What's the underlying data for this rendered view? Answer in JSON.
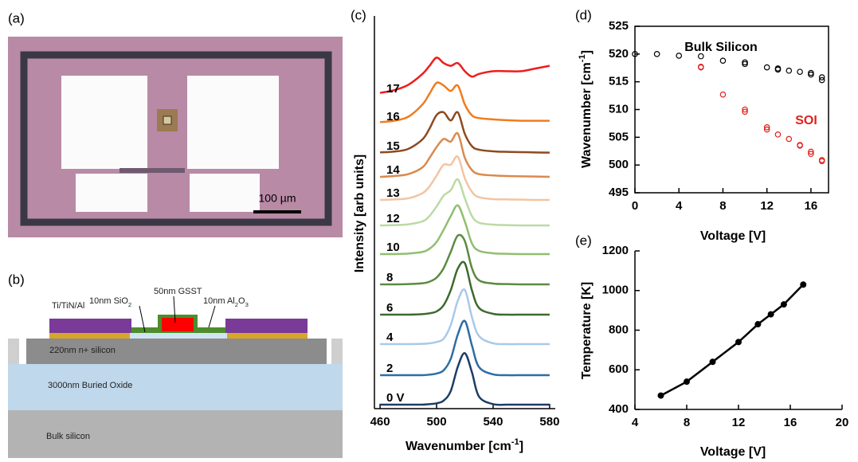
{
  "micrograph": {
    "panel": "(a)",
    "scale_bar": "100 µm"
  },
  "cross_section": {
    "panel": "(b)",
    "labels": {
      "metal": [
        "Ti/TiN/Al"
      ],
      "sio2": [
        "10nm SiO",
        "2"
      ],
      "gsst": [
        "50nm GSST"
      ],
      "al2o3": [
        "10nm Al",
        "2",
        "O",
        "3"
      ],
      "nsilicon": [
        "220nm n+ silicon"
      ],
      "oxide": [
        "3000nm Buried Oxide"
      ],
      "bulk": [
        "Bulk silicon"
      ]
    }
  },
  "chart_data": [
    {
      "type": "line",
      "panel": "(c)",
      "xlabel": [
        "Wavenumber [cm",
        "-1",
        "]"
      ],
      "ylabel": "Intensity [arb units]",
      "xlim": [
        456,
        584
      ],
      "xticks": [
        460,
        500,
        540,
        580
      ],
      "x": [
        460,
        470,
        480,
        490,
        495,
        500,
        505,
        510,
        515,
        520,
        525,
        530,
        540,
        550,
        560,
        570,
        580
      ],
      "series": [
        {
          "name": "0 V",
          "color": "#1f3d66",
          "values": [
            0,
            0,
            0,
            0,
            0.02,
            0.05,
            0.15,
            0.5,
            1.4,
            1.9,
            1.2,
            0.3,
            0.02,
            0,
            0,
            0,
            0
          ]
        },
        {
          "name": "2",
          "color": "#2e6da4",
          "values": [
            0,
            0,
            0,
            0,
            0.02,
            0.06,
            0.18,
            0.6,
            1.5,
            2.0,
            1.1,
            0.3,
            0.03,
            0,
            0,
            0,
            0
          ]
        },
        {
          "name": "4",
          "color": "#a9c9e8",
          "values": [
            0,
            0,
            0,
            0.01,
            0.03,
            0.08,
            0.2,
            0.7,
            1.6,
            2.0,
            1.0,
            0.3,
            0.03,
            0,
            0,
            0,
            0
          ]
        },
        {
          "name": "6",
          "color": "#3c6a2e",
          "values": [
            0,
            0,
            0,
            0.02,
            0.05,
            0.12,
            0.35,
            0.9,
            1.7,
            1.9,
            0.9,
            0.25,
            0.03,
            0,
            0,
            0,
            0
          ]
        },
        {
          "name": "8",
          "color": "#5b8b40",
          "values": [
            0,
            0,
            0.01,
            0.04,
            0.1,
            0.25,
            0.6,
            1.2,
            1.8,
            1.6,
            0.6,
            0.15,
            0.03,
            0.01,
            0,
            0,
            0
          ]
        },
        {
          "name": "10",
          "color": "#8fbf70",
          "values": [
            0,
            0,
            0.02,
            0.08,
            0.2,
            0.45,
            0.9,
            1.4,
            1.8,
            1.2,
            0.4,
            0.12,
            0.03,
            0.01,
            0,
            0,
            0
          ]
        },
        {
          "name": "12",
          "color": "#bcdaa4",
          "values": [
            0,
            0.01,
            0.04,
            0.15,
            0.35,
            0.7,
            1.1,
            1.3,
            1.7,
            1.0,
            0.35,
            0.1,
            0.03,
            0.01,
            0,
            0,
            0
          ]
        },
        {
          "name": "13",
          "color": "#f3c4a2",
          "values": [
            0,
            0.02,
            0.06,
            0.25,
            0.5,
            0.9,
            1.3,
            1.3,
            1.6,
            0.8,
            0.3,
            0.1,
            0.03,
            0.02,
            0.01,
            0,
            0
          ]
        },
        {
          "name": "14",
          "color": "#d98a4e",
          "values": [
            0,
            0.03,
            0.1,
            0.35,
            0.7,
            1.1,
            1.4,
            1.3,
            1.6,
            0.7,
            0.25,
            0.1,
            0.05,
            0.03,
            0.02,
            0.01,
            0
          ]
        },
        {
          "name": "15",
          "color": "#8e4a1e",
          "values": [
            0.02,
            0.05,
            0.15,
            0.5,
            0.9,
            1.4,
            1.5,
            1.2,
            1.5,
            0.7,
            0.25,
            0.12,
            0.06,
            0.04,
            0.03,
            0.02,
            0.01
          ]
        },
        {
          "name": "16",
          "color": "#f07c1e",
          "values": [
            0.05,
            0.1,
            0.25,
            0.7,
            1.1,
            1.5,
            1.4,
            1.2,
            1.4,
            0.7,
            0.3,
            0.2,
            0.15,
            0.12,
            0.1,
            0.1,
            0.1
          ]
        },
        {
          "name": "17",
          "color": "#ee1c1c",
          "values": [
            0.1,
            0.2,
            0.4,
            0.8,
            1.1,
            1.4,
            1.2,
            1.1,
            1.2,
            0.9,
            0.7,
            0.8,
            0.9,
            0.9,
            0.9,
            1.0,
            1.1
          ]
        }
      ]
    },
    {
      "type": "scatter",
      "panel": "(d)",
      "xlabel": "Voltage [V]",
      "ylabel": [
        "Wavenumber [cm",
        "-1",
        "]"
      ],
      "xlim": [
        0,
        17.6
      ],
      "ylim": [
        495,
        525
      ],
      "xticks": [
        0,
        4,
        8,
        12,
        16
      ],
      "yticks": [
        495,
        500,
        505,
        510,
        515,
        520,
        525
      ],
      "frame": true,
      "series": [
        {
          "name": "Bulk Silicon",
          "color": "#000000",
          "x": [
            0,
            2,
            4,
            6,
            8,
            10,
            10,
            12,
            13,
            13,
            14,
            15,
            16,
            16,
            17,
            17
          ],
          "values": [
            520,
            520,
            519.7,
            519.6,
            518.8,
            518.5,
            518.2,
            517.6,
            517.4,
            517.2,
            517.0,
            516.8,
            516.6,
            516.3,
            515.8,
            515.3
          ]
        },
        {
          "name": "SOI",
          "color": "#e0201b",
          "x": [
            6,
            6,
            8,
            10,
            10,
            12,
            12,
            13,
            14,
            15,
            15,
            16,
            16,
            17,
            17
          ],
          "values": [
            517.7,
            517.6,
            512.7,
            510.0,
            509.6,
            506.8,
            506.4,
            505.5,
            504.7,
            503.6,
            503.5,
            502.4,
            502.0,
            500.9,
            500.7
          ]
        }
      ]
    },
    {
      "type": "line",
      "panel": "(e)",
      "markers": true,
      "xlabel": "Voltage [V]",
      "ylabel": "Temperature [K]",
      "xlim": [
        4,
        20
      ],
      "ylim": [
        400,
        1200
      ],
      "xticks": [
        4,
        8,
        12,
        16,
        20
      ],
      "yticks": [
        400,
        600,
        800,
        1000,
        1200
      ],
      "series": [
        {
          "color": "#000000",
          "x": [
            6,
            8,
            10,
            12,
            13.5,
            14.5,
            15.5,
            17
          ],
          "values": [
            470,
            540,
            640,
            740,
            830,
            880,
            930,
            1030
          ]
        }
      ]
    }
  ]
}
